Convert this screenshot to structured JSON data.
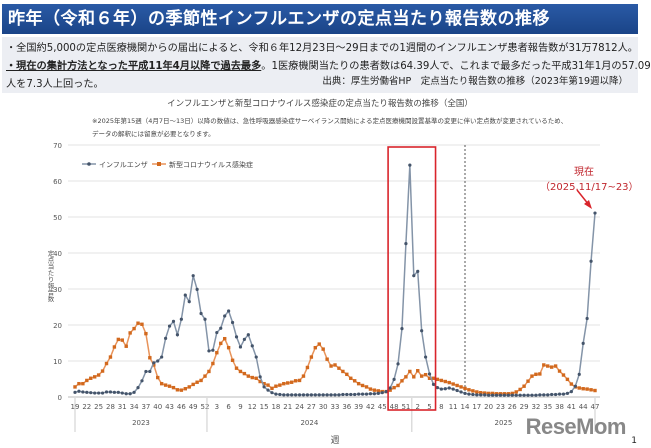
{
  "header": {
    "title": "昨年（令和６年）の季節性インフルエンザの定点当たり報告数の推移"
  },
  "info": {
    "line1": "・全国約5,000の定点医療機関からの届出によると、令和６年12月23日～29日までの1週間のインフルエンザ患者報告数が31万7812人。",
    "line2_bold": "・現在の集計方法となった平成11年4月以降で過去最多",
    "line2_rest": "。1医療機関当たりの患者数は64.39人で、これまで最多だった平成31年1月の57.09",
    "line3": "人を7.3人上回った。",
    "source": "出典：厚生労働省HP　定点当たり報告数の推移（2023年第19週以降）"
  },
  "annotation": {
    "line1": "現在",
    "line2": "（2025.11/17~23）"
  },
  "footer": {
    "logo": "ReseMom",
    "page_number": "1"
  },
  "colors": {
    "influenza": "#44546a",
    "covid": "#d2691e",
    "highlight_box": "#d9242b",
    "title_bar": "#1f4e96"
  },
  "chart_data": {
    "type": "line",
    "title": "インフルエンザと新型コロナウイルス感染症の定点当たり報告数の推移（全国）",
    "note_line1": "※2025年第15週（4月7日～13日）以降の数値は、急性呼吸器感染症サーベイランス開始による定点医療機関設置基準の変更に伴い定点数が変更されているため、",
    "note_line2": "データの解釈には留意が必要となります。",
    "xlabel": "週",
    "ylabel": "定点当たり報告数",
    "ylim": [
      0,
      70
    ],
    "y_ticks": [
      "0",
      "10",
      "20",
      "30",
      "40",
      "50",
      "60",
      "70"
    ],
    "grid": true,
    "legend_position": "top-left",
    "years": [
      {
        "label": "2023",
        "start_week": 19,
        "end_week": 52
      },
      {
        "label": "2024",
        "start_week": 1,
        "end_week": 52
      },
      {
        "label": "2025",
        "start_week": 1,
        "end_week": 47
      }
    ],
    "x_tick_labels": [
      "19",
      "22",
      "25",
      "28",
      "31",
      "34",
      "37",
      "40",
      "43",
      "46",
      "49",
      "52",
      "3",
      "6",
      "9",
      "12",
      "15",
      "18",
      "21",
      "24",
      "27",
      "30",
      "33",
      "36",
      "39",
      "42",
      "45",
      "48",
      "51",
      "2",
      "5",
      "8",
      "11",
      "14",
      "17",
      "20",
      "23",
      "26",
      "29",
      "32",
      "35",
      "38",
      "41",
      "44",
      "47"
    ],
    "dashed_marker_week": "2025-W14",
    "highlight_range": [
      "2024-W48",
      "2025-W5"
    ],
    "series": [
      {
        "name": "インフルエンザ",
        "marker": "circle",
        "values": [
          1.3,
          1.6,
          1.4,
          1.3,
          1.2,
          1.1,
          1.1,
          1.1,
          1.4,
          1.4,
          1.3,
          1.3,
          1.1,
          0.9,
          0.9,
          1.3,
          2.6,
          4.5,
          7.1,
          7.1,
          9.5,
          10.0,
          11.1,
          16.3,
          19.7,
          21.0,
          17.3,
          21.6,
          28.3,
          26.5,
          33.7,
          29.9,
          23.2,
          21.6,
          12.8,
          13.0,
          17.9,
          19.1,
          22.5,
          23.9,
          20.7,
          16.7,
          13.9,
          16.0,
          17.3,
          14.2,
          11.1,
          5.6,
          2.8,
          1.9,
          1.2,
          0.8,
          0.7,
          0.6,
          0.6,
          0.6,
          0.6,
          0.6,
          0.6,
          0.6,
          0.6,
          0.6,
          0.6,
          0.6,
          0.6,
          0.6,
          0.6,
          0.6,
          0.7,
          0.7,
          0.7,
          0.7,
          0.8,
          0.8,
          0.8,
          0.9,
          0.9,
          1.0,
          1.2,
          1.5,
          2.5,
          4.9,
          9.2,
          19.0,
          42.6,
          64.4,
          33.7,
          34.9,
          18.4,
          11.1,
          6.4,
          3.5,
          2.6,
          2.2,
          2.3,
          2.5,
          2.2,
          1.8,
          1.4,
          1.0,
          0.8,
          0.7,
          0.6,
          0.6,
          0.6,
          0.5,
          0.5,
          0.5,
          0.5,
          0.5,
          0.5,
          0.5,
          0.5,
          0.5,
          0.5,
          0.5,
          0.5,
          0.5,
          0.6,
          0.6,
          0.6,
          0.7,
          0.7,
          0.8,
          0.8,
          1.0,
          1.5,
          3.0,
          6.3,
          14.9,
          21.8,
          37.7,
          51.1
        ]
      },
      {
        "name": "新型コロナウイルス感染症",
        "marker": "square",
        "values": [
          2.8,
          3.7,
          3.7,
          4.6,
          5.2,
          5.6,
          6.1,
          7.2,
          9.3,
          11.1,
          13.9,
          16.0,
          15.8,
          14.1,
          17.8,
          19.0,
          20.5,
          20.2,
          17.6,
          10.9,
          8.9,
          5.4,
          3.7,
          3.3,
          3.0,
          2.6,
          2.0,
          1.9,
          2.3,
          2.8,
          3.5,
          4.1,
          4.6,
          5.8,
          7.1,
          9.3,
          12.3,
          14.9,
          16.2,
          13.7,
          10.2,
          8.0,
          7.1,
          6.5,
          5.8,
          5.4,
          5.2,
          4.3,
          3.7,
          3.3,
          2.4,
          3.0,
          3.3,
          3.7,
          3.9,
          4.1,
          4.5,
          4.6,
          5.8,
          8.2,
          11.1,
          13.7,
          14.7,
          13.3,
          10.5,
          8.6,
          8.9,
          8.0,
          7.1,
          6.3,
          5.2,
          4.5,
          3.7,
          3.2,
          2.8,
          2.2,
          1.9,
          1.7,
          1.5,
          1.5,
          1.9,
          2.6,
          3.2,
          4.5,
          5.6,
          7.1,
          5.6,
          7.3,
          5.8,
          6.2,
          5.2,
          5.2,
          4.9,
          4.6,
          4.3,
          4.0,
          3.6,
          3.2,
          2.8,
          2.4,
          2.0,
          1.7,
          1.4,
          1.2,
          1.1,
          1.0,
          1.0,
          0.9,
          0.9,
          0.9,
          0.9,
          1.0,
          1.4,
          2.1,
          3.0,
          4.4,
          5.8,
          6.3,
          6.4,
          8.9,
          8.6,
          8.3,
          8.6,
          7.2,
          6.1,
          4.9,
          3.6,
          2.8,
          2.5,
          2.3,
          2.2,
          2.0,
          1.8
        ]
      }
    ]
  }
}
